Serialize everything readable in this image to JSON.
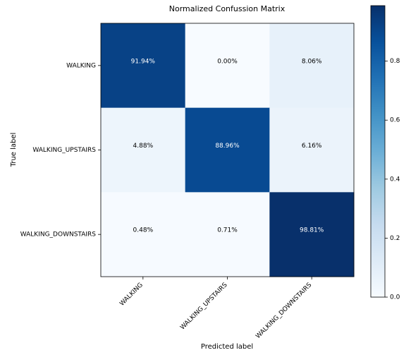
{
  "chart_data": {
    "type": "heatmap",
    "title": "Normalized Confussion Matrix",
    "xlabel": "Predicted label",
    "ylabel": "True label",
    "row_labels": [
      "WALKING",
      "WALKING_UPSTAIRS",
      "WALKING_DOWNSTAIRS"
    ],
    "col_labels": [
      "WALKING",
      "WALKING_UPSTAIRS",
      "WALKING_DOWNSTAIRS"
    ],
    "values": [
      [
        0.9194,
        0.0,
        0.0806
      ],
      [
        0.0488,
        0.8896,
        0.0616
      ],
      [
        0.0048,
        0.0071,
        0.9881
      ]
    ],
    "cell_text": [
      [
        "91.94%",
        "0.00%",
        "8.06%"
      ],
      [
        "4.88%",
        "88.96%",
        "6.16%"
      ],
      [
        "0.48%",
        "0.71%",
        "98.81%"
      ]
    ],
    "colormap": "Blues",
    "color_range": [
      0,
      0.9881
    ],
    "colorbar_ticks": [
      "0.0",
      "0.2",
      "0.4",
      "0.6",
      "0.8"
    ],
    "colors": {
      "low": "#f7fbff",
      "high": "#08306b",
      "text_light": "#ffffff",
      "text_dark": "#000000"
    }
  }
}
